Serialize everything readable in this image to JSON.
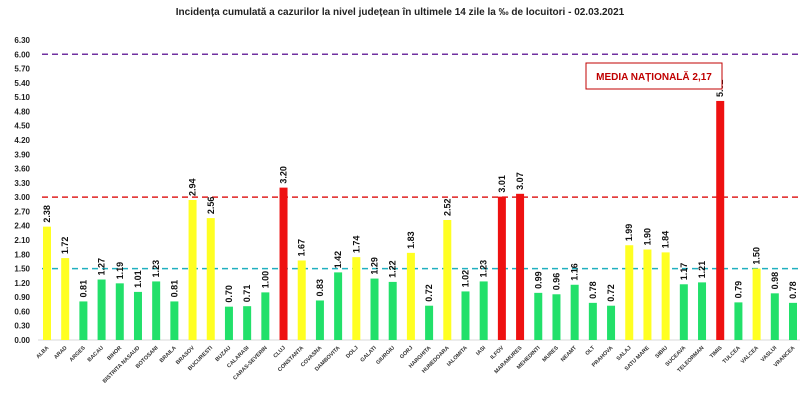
{
  "chart_data": {
    "type": "bar",
    "title": "Incidența cumulată a cazurilor la nivel județean în ultimele 14 zile la ‰ de locuitori - 02.03.2021",
    "xlabel": "",
    "ylabel": "",
    "ylim": [
      0,
      6.3
    ],
    "ytick_step": 0.3,
    "grid": false,
    "categories": [
      "ALBA",
      "ARAD",
      "ARGES",
      "BACAU",
      "BIHOR",
      "BISTRITA NASAUD",
      "BOTOSANI",
      "BRAILA",
      "BRASOV",
      "BUCURESTI",
      "BUZAU",
      "CALARASI",
      "CARAS-SEVERIN",
      "CLUJ",
      "CONSTANTA",
      "COVASNA",
      "DAMBOVITA",
      "DOLJ",
      "GALATI",
      "GIURGIU",
      "GORJ",
      "HARGHITA",
      "HUNEDOARA",
      "IALOMITA",
      "IASI",
      "ILFOV",
      "MARAMURES",
      "MEHEDINTI",
      "MURES",
      "NEAMT",
      "OLT",
      "PRAHOVA",
      "SALAJ",
      "SATU MARE",
      "SIBIU",
      "SUCEAVA",
      "TELEORMAN",
      "TIMIS",
      "TULCEA",
      "VALCEA",
      "VASLUI",
      "VRANCEA"
    ],
    "values": [
      2.38,
      1.72,
      0.81,
      1.27,
      1.19,
      1.01,
      1.23,
      0.81,
      2.94,
      2.56,
      0.7,
      0.71,
      1.0,
      3.2,
      1.67,
      0.83,
      1.42,
      1.74,
      1.29,
      1.22,
      1.83,
      0.72,
      2.52,
      1.02,
      1.23,
      3.01,
      3.07,
      0.99,
      0.96,
      1.16,
      0.78,
      0.72,
      1.99,
      1.9,
      1.84,
      1.17,
      1.21,
      5.02,
      0.79,
      1.5,
      0.98,
      0.78
    ],
    "color_thresholds": {
      "green_below": 1.5,
      "red_from": 3.0
    },
    "colors": {
      "green": "#22e06a",
      "yellow": "#ffff22",
      "red": "#ee1111"
    },
    "reference_lines": [
      {
        "value": 6.0,
        "color": "#7030a0"
      },
      {
        "value": 3.0,
        "color": "#e02020"
      },
      {
        "value": 1.5,
        "color": "#20b0c0"
      }
    ],
    "annotation": "MEDIA NAȚIONALĂ 2,17"
  }
}
